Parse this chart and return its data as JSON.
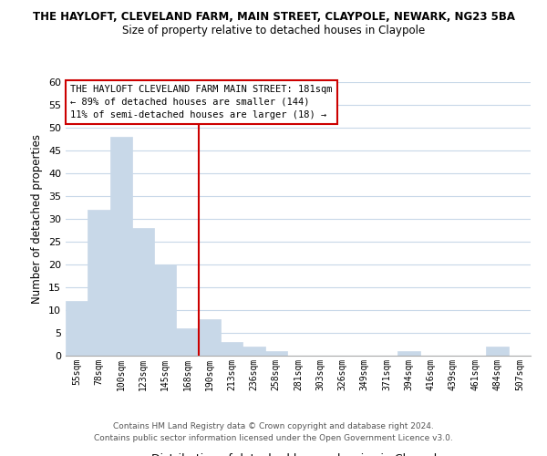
{
  "title1": "THE HAYLOFT, CLEVELAND FARM, MAIN STREET, CLAYPOLE, NEWARK, NG23 5BA",
  "title2": "Size of property relative to detached houses in Claypole",
  "xlabel": "Distribution of detached houses by size in Claypole",
  "ylabel": "Number of detached properties",
  "categories": [
    "55sqm",
    "78sqm",
    "100sqm",
    "123sqm",
    "145sqm",
    "168sqm",
    "190sqm",
    "213sqm",
    "236sqm",
    "258sqm",
    "281sqm",
    "303sqm",
    "326sqm",
    "349sqm",
    "371sqm",
    "394sqm",
    "416sqm",
    "439sqm",
    "461sqm",
    "484sqm",
    "507sqm"
  ],
  "values": [
    12,
    32,
    48,
    28,
    20,
    6,
    8,
    3,
    2,
    1,
    0,
    0,
    0,
    0,
    0,
    1,
    0,
    0,
    0,
    2,
    0
  ],
  "bar_color": "#c8d8e8",
  "bar_edge_color": "#c8d8e8",
  "ylim": [
    0,
    60
  ],
  "yticks": [
    0,
    5,
    10,
    15,
    20,
    25,
    30,
    35,
    40,
    45,
    50,
    55,
    60
  ],
  "vline_color": "#cc0000",
  "annotation_title": "THE HAYLOFT CLEVELAND FARM MAIN STREET: 181sqm",
  "annotation_line1": "← 89% of detached houses are smaller (144)",
  "annotation_line2": "11% of semi-detached houses are larger (18) →",
  "annotation_box_color": "#ffffff",
  "annotation_box_edge": "#cc0000",
  "footer1": "Contains HM Land Registry data © Crown copyright and database right 2024.",
  "footer2": "Contains public sector information licensed under the Open Government Licence v3.0.",
  "background_color": "#ffffff",
  "grid_color": "#c8d8e8"
}
